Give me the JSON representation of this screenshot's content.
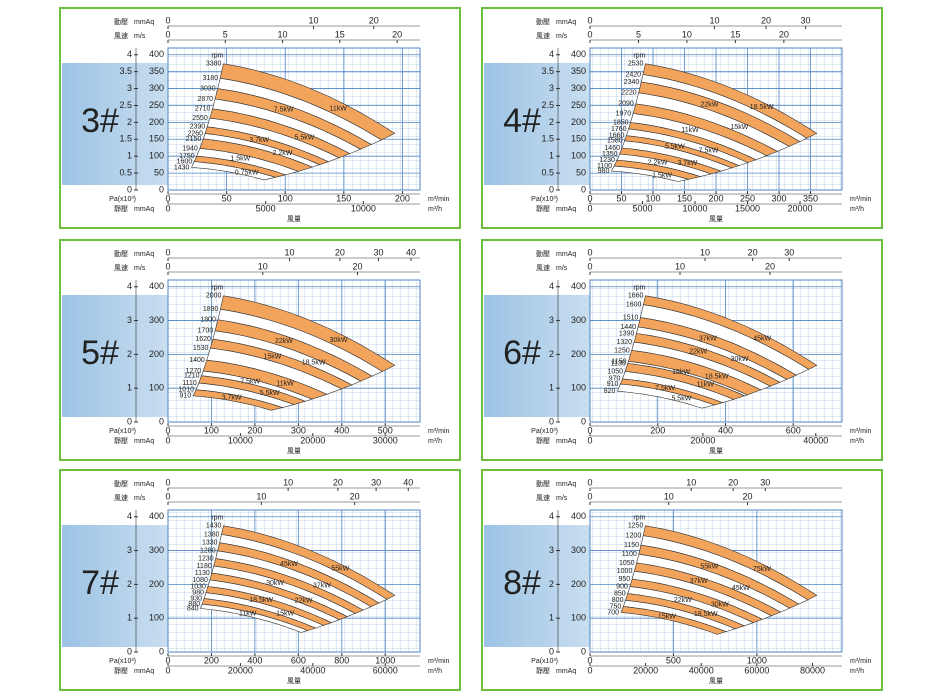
{
  "axis_text": {
    "dynamic": "動壓",
    "mmaq": "mmAq",
    "velocity": "風速",
    "ms": "m/s",
    "pa": "Pa(x10³)",
    "static": "靜壓",
    "flow": "風量",
    "m3min": "m³/min",
    "m3h": "m³/h",
    "rpm": "rpm"
  },
  "panels": [
    {
      "label": "3#",
      "dynamic_pressure": {
        "ticks": [
          0,
          10,
          20
        ],
        "lim": [
          0,
          30
        ],
        "scale": "sqrt"
      },
      "velocity": {
        "ticks": [
          0,
          5,
          10,
          15,
          20
        ],
        "lim": [
          0,
          22
        ]
      },
      "pressure_pa": {
        "ticks": [
          0,
          0.5,
          1,
          1.5,
          2,
          2.5,
          3,
          3.5,
          4
        ],
        "lim": [
          0,
          4.2
        ]
      },
      "pressure_mmaq": {
        "ticks": [
          0,
          50,
          100,
          150,
          200,
          250,
          300,
          350,
          400
        ],
        "lim": [
          0,
          420
        ]
      },
      "flow_m3min": {
        "ticks": [
          0,
          50,
          100,
          150,
          200
        ],
        "lim": [
          0,
          215
        ]
      },
      "flow_m3h": {
        "ticks": [
          0,
          5000,
          10000
        ],
        "lim": [
          0,
          12900
        ]
      },
      "rpm": [
        3380,
        3180,
        3030,
        2870,
        2710,
        2550,
        2390,
        2260,
        2150,
        1940,
        1750,
        1600,
        1430
      ],
      "power": [
        "11kW",
        "7.5kW",
        "5.5kW",
        "3.7kW",
        "2.2kW",
        "1.5kW",
        "0.75kW"
      ]
    },
    {
      "label": "4#",
      "dynamic_pressure": {
        "ticks": [
          0,
          10,
          20,
          30
        ],
        "lim": [
          0,
          41
        ],
        "scale": "sqrt"
      },
      "velocity": {
        "ticks": [
          0,
          5,
          10,
          15,
          20
        ],
        "lim": [
          0,
          26
        ]
      },
      "pressure_pa": {
        "ticks": [
          0,
          0.5,
          1,
          1.5,
          2,
          2.5,
          3,
          3.5,
          4
        ],
        "lim": [
          0,
          4.2
        ]
      },
      "pressure_mmaq": {
        "ticks": [
          0,
          50,
          100,
          150,
          200,
          250,
          300,
          350,
          400
        ],
        "lim": [
          0,
          420
        ]
      },
      "flow_m3min": {
        "ticks": [
          0,
          50,
          100,
          150,
          200,
          250,
          300,
          350
        ],
        "lim": [
          0,
          400
        ]
      },
      "flow_m3h": {
        "ticks": [
          0,
          5000,
          10000,
          15000,
          20000
        ],
        "lim": [
          0,
          24000
        ]
      },
      "rpm": [
        2530,
        2420,
        2340,
        2220,
        2090,
        1970,
        1850,
        1760,
        1660,
        1580,
        1460,
        1350,
        1230,
        1100,
        980
      ],
      "power": [
        "18.5kW",
        "22kW",
        "15kW",
        "11kW",
        "7.5kW",
        "5.5kW",
        "3.7kW",
        "2.2kW",
        "1.5kW"
      ]
    },
    {
      "label": "5#",
      "dynamic_pressure": {
        "ticks": [
          0,
          10,
          20,
          30,
          40
        ],
        "lim": [
          0,
          43
        ],
        "scale": "sqrt"
      },
      "velocity": {
        "ticks": [
          0,
          10,
          20
        ],
        "lim": [
          0,
          26.6
        ]
      },
      "pressure_pa": {
        "ticks": [
          0,
          1,
          2,
          3,
          4
        ],
        "lim": [
          0,
          4.2
        ]
      },
      "pressure_mmaq": {
        "ticks": [
          0,
          100,
          200,
          300,
          400
        ],
        "lim": [
          0,
          420
        ]
      },
      "flow_m3min": {
        "ticks": [
          0,
          100,
          200,
          300,
          400,
          500
        ],
        "lim": [
          0,
          580
        ]
      },
      "flow_m3h": {
        "ticks": [
          0,
          10000,
          20000,
          30000
        ],
        "lim": [
          0,
          34800
        ]
      },
      "rpm": [
        2000,
        1890,
        1800,
        1700,
        1620,
        1530,
        1400,
        1270,
        1210,
        1110,
        1010,
        910
      ],
      "power": [
        "30kW",
        "22kW",
        "18.5kW",
        "15kW",
        "11kW",
        "7.5kW",
        "5.5kW",
        "3.7kW"
      ]
    },
    {
      "label": "6#",
      "dynamic_pressure": {
        "ticks": [
          0,
          10,
          20,
          30
        ],
        "lim": [
          0,
          48
        ],
        "scale": "sqrt"
      },
      "velocity": {
        "ticks": [
          0,
          10,
          20
        ],
        "lim": [
          0,
          28
        ]
      },
      "pressure_pa": {
        "ticks": [
          0,
          1,
          2,
          3,
          4
        ],
        "lim": [
          0,
          4.2
        ]
      },
      "pressure_mmaq": {
        "ticks": [
          0,
          100,
          200,
          300,
          400
        ],
        "lim": [
          0,
          420
        ]
      },
      "flow_m3min": {
        "ticks": [
          0,
          200,
          400,
          600
        ],
        "lim": [
          0,
          744
        ]
      },
      "flow_m3h": {
        "ticks": [
          0,
          20000,
          40000
        ],
        "lim": [
          0,
          44640
        ]
      },
      "rpm": [
        1660,
        1600,
        1510,
        1440,
        1390,
        1320,
        1250,
        1150,
        1130,
        1050,
        970,
        910,
        820
      ],
      "power": [
        "45kW",
        "37kW",
        "30kW",
        "22kW",
        "18.5kW",
        "15kW",
        "11kW",
        "7.5kW",
        "5.5kW"
      ]
    },
    {
      "label": "7#",
      "dynamic_pressure": {
        "ticks": [
          0,
          10,
          20,
          30,
          40
        ],
        "lim": [
          0,
          44
        ],
        "scale": "sqrt"
      },
      "velocity": {
        "ticks": [
          0,
          10,
          20
        ],
        "lim": [
          0,
          27
        ]
      },
      "pressure_pa": {
        "ticks": [
          0,
          1,
          2,
          3,
          4
        ],
        "lim": [
          0,
          4.2
        ]
      },
      "pressure_mmaq": {
        "ticks": [
          0,
          100,
          200,
          300,
          400
        ],
        "lim": [
          0,
          420
        ]
      },
      "flow_m3min": {
        "ticks": [
          0,
          200,
          400,
          600,
          800,
          1000
        ],
        "lim": [
          0,
          1160
        ]
      },
      "flow_m3h": {
        "ticks": [
          0,
          20000,
          40000,
          60000
        ],
        "lim": [
          0,
          69600
        ]
      },
      "rpm": [
        1430,
        1380,
        1330,
        1280,
        1230,
        1180,
        1130,
        1080,
        1030,
        980,
        930,
        880,
        840
      ],
      "power": [
        "55kW",
        "45kW",
        "37kW",
        "30kW",
        "22kW",
        "18.5kW",
        "15kW",
        "11kW"
      ]
    },
    {
      "label": "8#",
      "dynamic_pressure": {
        "ticks": [
          0,
          10,
          20,
          30
        ],
        "lim": [
          0,
          62
        ],
        "scale": "sqrt"
      },
      "velocity": {
        "ticks": [
          0,
          10,
          20
        ],
        "lim": [
          0,
          32
        ]
      },
      "pressure_pa": {
        "ticks": [
          0,
          1,
          2,
          3,
          4
        ],
        "lim": [
          0,
          4.2
        ]
      },
      "pressure_mmaq": {
        "ticks": [
          0,
          100,
          200,
          300,
          400
        ],
        "lim": [
          0,
          420
        ]
      },
      "flow_m3min": {
        "ticks": [
          0,
          500,
          1000
        ],
        "lim": [
          0,
          1510
        ]
      },
      "flow_m3h": {
        "ticks": [
          0,
          20000,
          40000,
          60000,
          80000
        ],
        "lim": [
          0,
          90600
        ]
      },
      "rpm": [
        1250,
        1200,
        1150,
        1100,
        1050,
        1000,
        950,
        900,
        850,
        800,
        750,
        700
      ],
      "power": [
        "75kW",
        "55kW",
        "45kW",
        "37kW",
        "30kW",
        "22kW",
        "18.5kW",
        "15kW"
      ]
    }
  ]
}
